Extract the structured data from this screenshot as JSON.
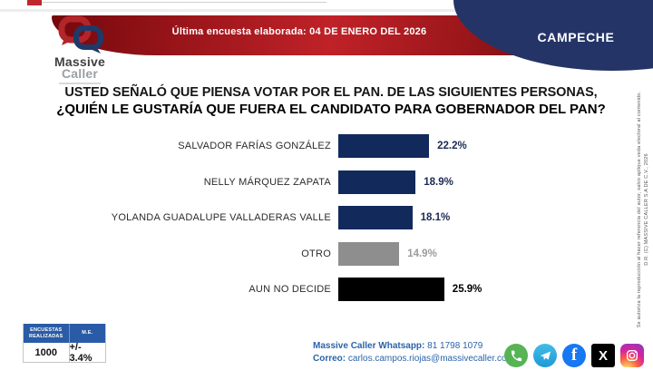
{
  "header": {
    "logo_line1": "Massive",
    "logo_line2": "Caller",
    "banner_text": "Última encuesta elaborada: 04 DE ENERO DEL 2026",
    "region_label": "CAMPECHE"
  },
  "title": {
    "line1": "USTED SEÑALÓ QUE PIENSA VOTAR POR EL PAN. DE LAS SIGUIENTES PERSONAS,",
    "line2": "¿QUIÉN LE GUSTARÍA QUE FUERA EL CANDIDATO PARA GOBERNADOR DEL PAN?"
  },
  "chart_data": {
    "type": "bar",
    "orientation": "horizontal",
    "title": "¿Quién le gustaría que fuera el candidato para gobernador del PAN?",
    "categories": [
      "SALVADOR FARÍAS GONZÁLEZ",
      "NELLY MÁRQUEZ ZAPATA",
      "YOLANDA GUADALUPE VALLADERAS VALLE",
      "OTRO",
      "AUN NO DECIDE"
    ],
    "values": [
      22.2,
      18.9,
      18.1,
      14.9,
      25.9
    ],
    "value_labels": [
      "22.2%",
      "18.9%",
      "18.1%",
      "14.9%",
      "25.9%"
    ],
    "bar_colors": [
      "#12295c",
      "#12295c",
      "#12295c",
      "#8e8e8e",
      "#000000"
    ],
    "value_label_colors": [
      "#1b2a52",
      "#1b2a52",
      "#1b2a52",
      "#9b9b9b",
      "#000000"
    ],
    "xlim": [
      0,
      30
    ],
    "grid": false,
    "legend": "none"
  },
  "stats_table": {
    "headers": [
      "ENCUESTAS REALIZADAS",
      "M.E."
    ],
    "values": [
      "1000",
      "+/- 3.4%"
    ]
  },
  "contact": {
    "line1_label": "Massive Caller Whatsapp:",
    "line1_value": "81 1798 1079",
    "line2_label": "Correo:",
    "line2_value": "carlos.campos.riojas@massivecaller.com"
  },
  "social_icons": [
    "whatsapp",
    "telegram",
    "facebook",
    "x",
    "instagram"
  ],
  "disclaimer": {
    "line1": "D.R. (C) MASSIVE CALLER S.A DE C.V., 2026",
    "line2": "Se autoriza la reproducción al hacer referencia del autor, salvo aplique veda electoral al contenido."
  },
  "colors": {
    "ribbon_red": "#bf2228",
    "navy": "#243467",
    "bar_navy": "#12295c",
    "table_header_blue": "#2a5ba6",
    "contact_blue": "#2a64a8"
  }
}
